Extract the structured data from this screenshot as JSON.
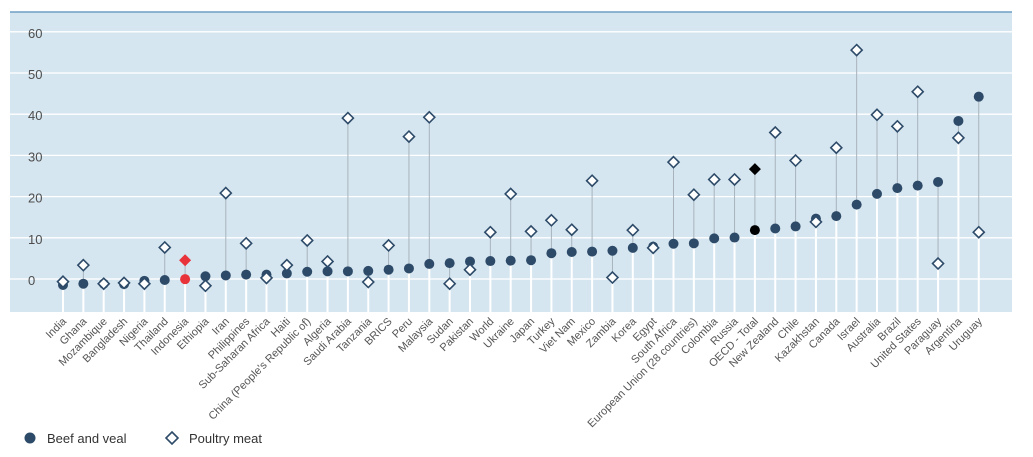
{
  "chart_data": {
    "type": "scatter",
    "title": "",
    "xlabel": "",
    "ylabel": "",
    "ylim": [
      -7,
      65
    ],
    "yticks": [
      0,
      10,
      20,
      30,
      40,
      50,
      60
    ],
    "grid": true,
    "legend_position": "bottom-left",
    "highlight_category": "Indonesia",
    "categories": [
      "India",
      "Ghana",
      "Mozambique",
      "Bangladesh",
      "Nigeria",
      "Thailand",
      "Indonesia",
      "Ethiopia",
      "Iran",
      "Philippines",
      "Sub-Saharan Africa",
      "Haiti",
      "China (People's Republic of)",
      "Algeria",
      "Saudi Arabia",
      "Tanzania",
      "BRICS",
      "Peru",
      "Malaysia",
      "Sudan",
      "Pakistan",
      "World",
      "Ukraine",
      "Japan",
      "Turkey",
      "Viet Nam",
      "Mexico",
      "Zambia",
      "Korea",
      "Egypt",
      "South Africa",
      "European Union (28 countries)",
      "Colombia",
      "Russia",
      "OECD - Total",
      "New Zealand",
      "Chile",
      "Kazakhstan",
      "Canada",
      "Israel",
      "Australia",
      "Brazil",
      "United States",
      "Paraguay",
      "Argentina",
      "Uruguay"
    ],
    "series": [
      {
        "name": "Beef and veal",
        "marker": "circle",
        "values": [
          0.5,
          0.8,
          0.8,
          0.7,
          1.5,
          1.7,
          1.9,
          2.6,
          2.8,
          3.0,
          3.0,
          3.3,
          3.7,
          3.8,
          3.8,
          3.9,
          4.2,
          4.5,
          5.6,
          5.8,
          6.2,
          6.3,
          6.4,
          6.5,
          8.2,
          8.5,
          8.6,
          8.8,
          9.5,
          9.8,
          10.5,
          10.6,
          11.8,
          12.0,
          13.8,
          14.2,
          14.7,
          16.6,
          17.2,
          20.0,
          22.6,
          24.0,
          24.6,
          25.5,
          40.3,
          46.2
        ]
      },
      {
        "name": "Poultry meat",
        "marker": "diamond",
        "values": [
          1.3,
          5.3,
          0.8,
          1.0,
          0.8,
          9.6,
          6.5,
          0.3,
          22.8,
          10.6,
          2.2,
          5.3,
          11.3,
          6.2,
          41.0,
          1.2,
          10.1,
          36.5,
          41.2,
          0.8,
          4.2,
          13.3,
          22.6,
          13.5,
          16.2,
          13.9,
          25.8,
          2.3,
          13.8,
          9.5,
          30.3,
          22.4,
          26.1,
          26.1,
          28.6,
          37.5,
          30.7,
          15.8,
          33.8,
          57.5,
          41.8,
          39.0,
          47.4,
          5.7,
          36.2,
          13.3
        ]
      }
    ],
    "colors": {
      "beef": "#2d4b69",
      "poultry": "#2d4b69",
      "highlight": "#e8333a",
      "oecd": "#000000",
      "plot_bg": "#d6e6f0",
      "gridline": "#ffffff",
      "stem": "#a8b3bc",
      "top_border": "#6f9fc5"
    }
  }
}
